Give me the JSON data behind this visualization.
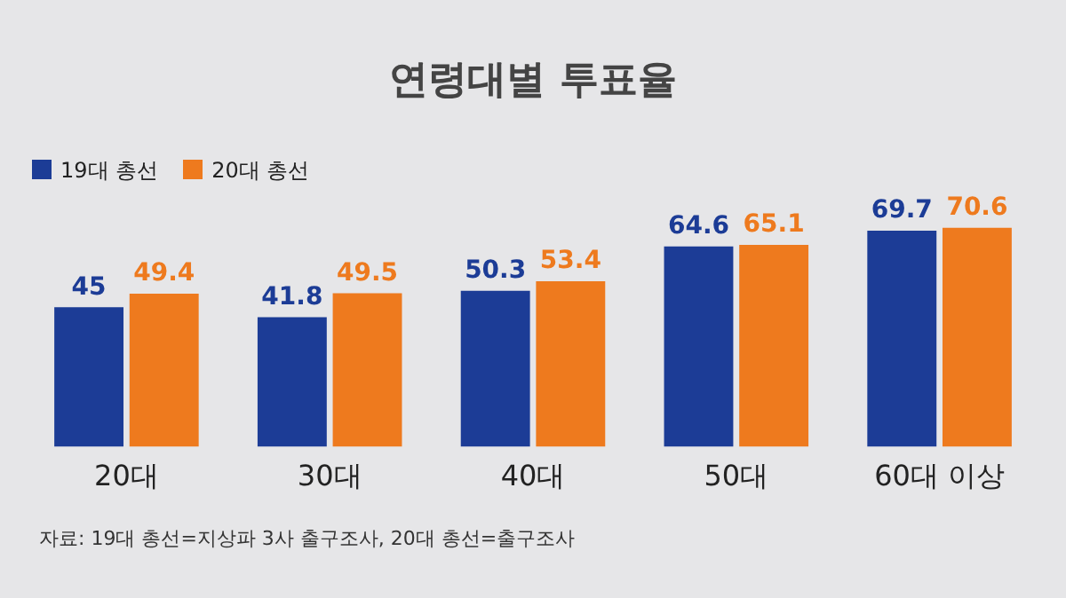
{
  "chart_data": {
    "type": "bar",
    "title": "연령대별 투표율",
    "categories": [
      "20대",
      "30대",
      "40대",
      "50대",
      "60대 이상"
    ],
    "series": [
      {
        "name": "19대 총선",
        "color": "#1c3c96",
        "values": [
          45,
          41.8,
          50.3,
          64.6,
          69.7
        ]
      },
      {
        "name": "20대 총선",
        "color": "#ee7a1e",
        "values": [
          49.4,
          49.5,
          53.4,
          65.1,
          70.6
        ]
      }
    ],
    "tick_labels": "x",
    "data_labels": true,
    "legend": "top left",
    "grid": false,
    "annotations": [
      "자료: 19대 총선=지상파 3사 출구조사, 20대 총선=출구조사"
    ]
  }
}
